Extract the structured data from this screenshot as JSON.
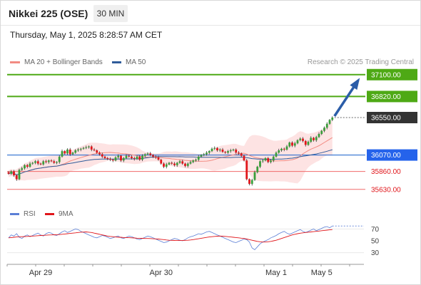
{
  "header": {
    "title": "Nikkei 225 (OSE)",
    "timeframe": "30 MIN"
  },
  "datetime": "Thursday, May 1, 2025 8:28:57 AM CET",
  "legend": [
    {
      "label": "MA 20 + Bollinger Bands",
      "color": "#f28b82"
    },
    {
      "label": "MA 50",
      "color": "#2f5c9a"
    }
  ],
  "credit": "Research © 2025 Trading Central",
  "osc_legend": [
    {
      "label": "RSI",
      "color": "#5b7fd6"
    },
    {
      "label": "9MA",
      "color": "#e0161b"
    }
  ],
  "chart_data": [
    {
      "type": "candlestick",
      "ylim": [
        35500,
        37180
      ],
      "x_labels": [
        {
          "label": "Apr 29",
          "at": 12
        },
        {
          "label": "Apr 30",
          "at": 57
        },
        {
          "label": "May 1",
          "at": 100
        },
        {
          "label": "May 5",
          "at": 117
        }
      ],
      "levels": [
        {
          "value": 37100,
          "label": "37100.00",
          "style": "green-box"
        },
        {
          "value": 36820,
          "label": "36820.00",
          "style": "green-box"
        },
        {
          "value": 36550,
          "label": "36550.00",
          "style": "dark-box"
        },
        {
          "value": 36070,
          "label": "36070.00",
          "style": "blue-box"
        },
        {
          "value": 35860,
          "label": "35860.00",
          "style": "red-text"
        },
        {
          "value": 35630,
          "label": "35630.00",
          "style": "red-text"
        }
      ],
      "closes": [
        35830,
        35860,
        35810,
        35760,
        35880,
        35900,
        35940,
        35920,
        35960,
        35970,
        35990,
        35960,
        35950,
        35990,
        35980,
        36000,
        35990,
        35970,
        35980,
        36050,
        36120,
        36090,
        36140,
        36080,
        36100,
        36130,
        36140,
        36150,
        36160,
        36170,
        36180,
        36140,
        36130,
        36100,
        36080,
        36050,
        36030,
        36020,
        36010,
        36000,
        36040,
        36060,
        36000,
        36030,
        36060,
        36050,
        36030,
        36020,
        36050,
        36010,
        36060,
        36080,
        36090,
        36070,
        36050,
        36040,
        36010,
        35960,
        35920,
        35950,
        35970,
        35960,
        35940,
        35970,
        35990,
        35960,
        35930,
        35960,
        35980,
        36000,
        36010,
        36050,
        36070,
        36080,
        36100,
        36120,
        36150,
        36160,
        36130,
        36140,
        36110,
        36100,
        36120,
        36130,
        36140,
        36100,
        36090,
        36060,
        36000,
        35760,
        35700,
        35750,
        35850,
        35920,
        35990,
        36000,
        36030,
        35980,
        36000,
        36050,
        36100,
        36130,
        36150,
        36140,
        36180,
        36230,
        36190,
        36220,
        36260,
        36280,
        36250,
        36200,
        36240,
        36290,
        36260,
        36300,
        36340,
        36380,
        36420,
        36470,
        36520,
        36550
      ],
      "rsi": [
        55,
        60,
        58,
        62,
        56,
        54,
        58,
        60,
        57,
        59,
        61,
        63,
        60,
        58,
        62,
        64,
        63,
        60,
        59,
        62,
        65,
        67,
        64,
        66,
        68,
        70,
        69,
        66,
        64,
        62,
        60,
        58,
        56,
        55,
        57,
        59,
        58,
        56,
        54,
        55,
        57,
        58,
        55,
        54,
        56,
        58,
        57,
        55,
        53,
        52,
        54,
        56,
        58,
        57,
        55,
        53,
        51,
        49,
        47,
        48,
        50,
        52,
        54,
        53,
        51,
        50,
        52,
        55,
        57,
        58,
        60,
        62,
        61,
        63,
        65,
        66,
        64,
        62,
        60,
        58,
        56,
        54,
        52,
        50,
        48,
        47,
        49,
        51,
        53,
        52,
        48,
        38,
        35,
        40,
        45,
        48,
        50,
        52,
        55,
        57,
        59,
        62,
        64,
        66,
        63,
        61,
        63,
        65,
        67,
        69,
        66,
        64,
        66,
        68,
        70,
        67,
        69,
        71,
        73,
        74,
        72,
        75
      ],
      "rsi_ma": [
        55,
        55.5,
        56,
        56.5,
        57,
        57,
        57.2,
        57.5,
        57.8,
        58,
        58.3,
        58.6,
        59,
        59.2,
        59.5,
        59.8,
        60,
        60.2,
        60.4,
        60.6,
        61,
        61.5,
        62,
        62.5,
        63,
        63.5,
        64,
        64.5,
        64.8,
        65,
        64.5,
        64,
        63,
        62,
        61,
        60,
        59,
        58,
        57.5,
        57,
        56.5,
        56,
        56,
        55.5,
        55.5,
        55.3,
        55,
        54.8,
        54.5,
        54.3,
        54.2,
        54,
        54,
        53.8,
        53.5,
        53.2,
        53,
        52.5,
        52,
        51.5,
        51,
        50.8,
        50.6,
        50.5,
        50.5,
        50.6,
        50.8,
        51,
        51.5,
        52,
        52.8,
        53.5,
        54.3,
        55,
        55.8,
        56.5,
        57,
        57.5,
        57.8,
        58,
        57.8,
        57.5,
        57,
        56.5,
        56,
        55.5,
        55,
        54.5,
        54,
        53,
        52,
        51,
        50,
        49,
        48.5,
        48,
        48,
        48.5,
        49,
        50,
        51,
        52.5,
        54,
        55.5,
        57,
        58.5,
        60,
        61,
        62,
        62.8,
        63.5,
        64,
        64.5,
        65,
        65.5,
        66,
        66.5,
        67,
        67.5,
        68,
        68.5,
        69
      ],
      "rsi_ticks": [
        70,
        50,
        30
      ]
    }
  ]
}
